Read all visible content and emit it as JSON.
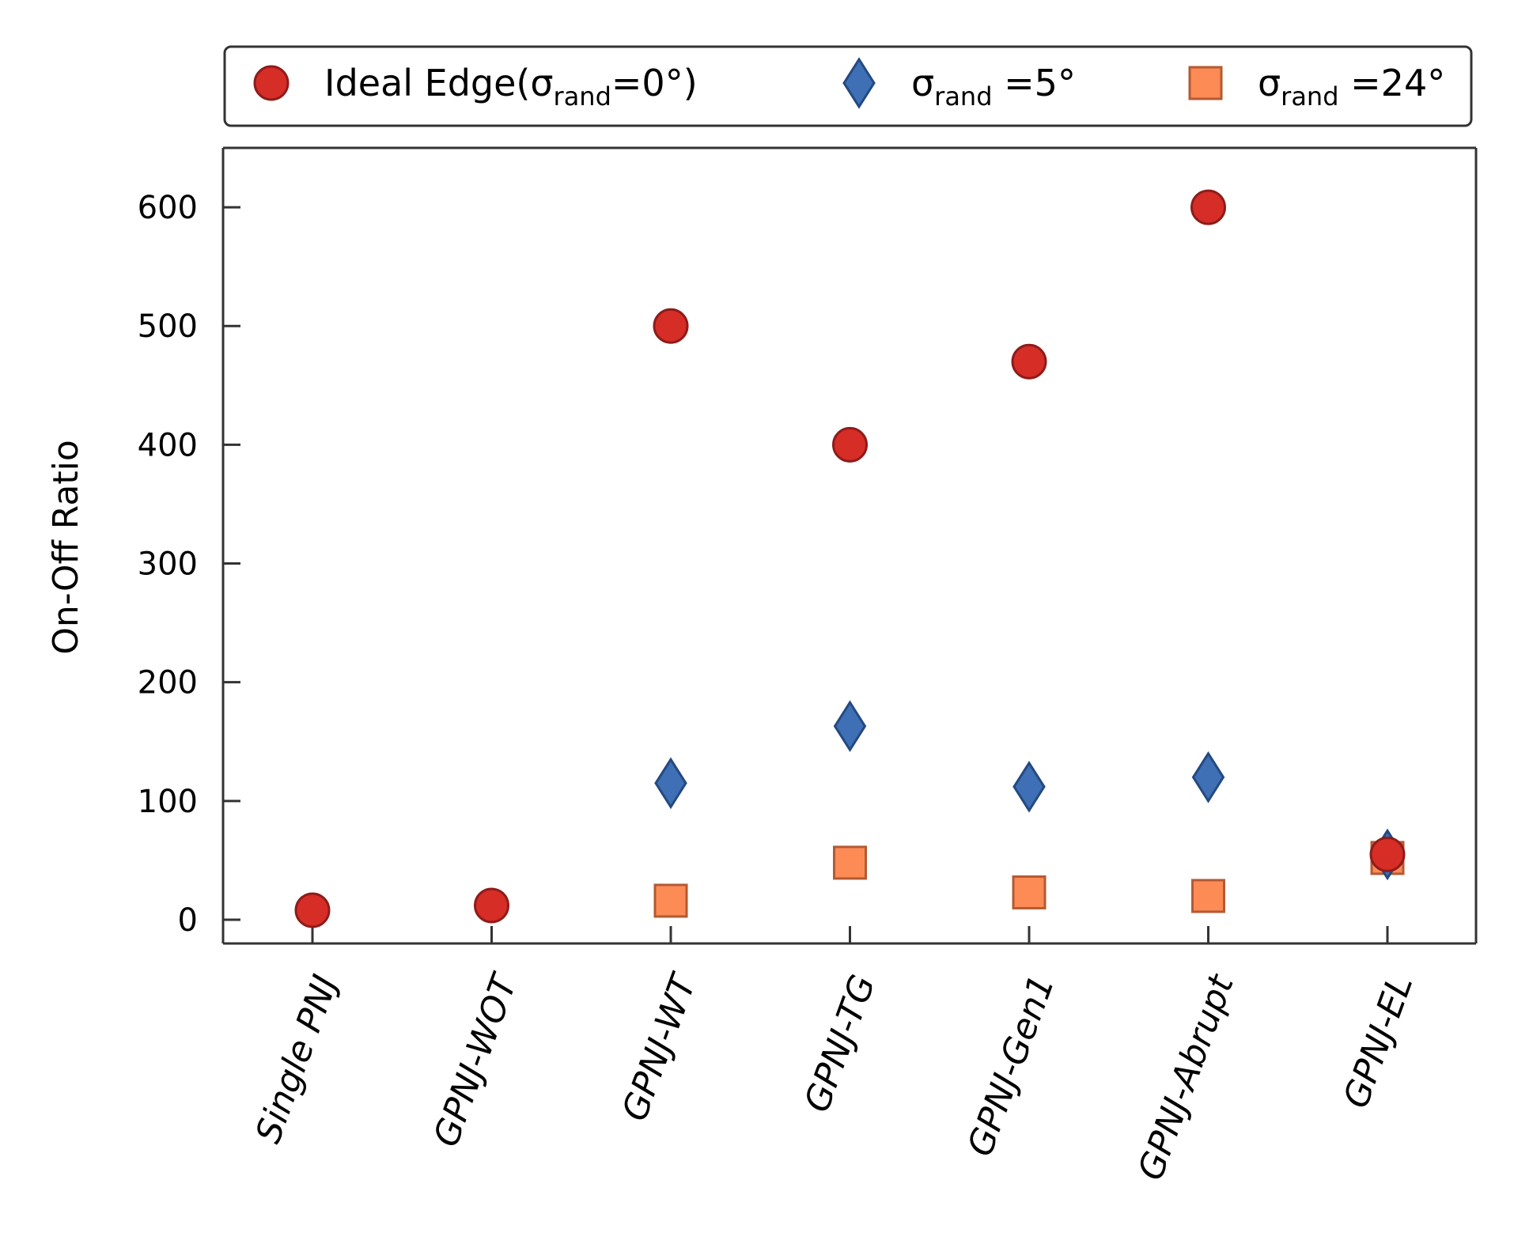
{
  "chart_data": {
    "type": "scatter",
    "ylabel": "On-Off Ratio",
    "xlabel": "",
    "ylim": [
      -20,
      650
    ],
    "yticks": [
      0,
      100,
      200,
      300,
      400,
      500,
      600
    ],
    "categories": [
      "Single PNJ",
      "GPNJ-WOT",
      "GPNJ-WT",
      "GPNJ-TG",
      "GPNJ-Gen1",
      "GPNJ-Abrupt",
      "GPNJ-EL"
    ],
    "legend_position": "top",
    "series": [
      {
        "legend": {
          "main": "Ideal Edge(σ",
          "sub": "rand",
          "suffix": "=0°)"
        },
        "marker": "circle",
        "fill": "#d62d27",
        "stroke": "#8e1c1a",
        "values": [
          8,
          12,
          null,
          null,
          null,
          null,
          null
        ],
        "values_full": [
          8,
          12,
          500,
          400,
          470,
          600,
          55
        ]
      },
      {
        "legend": {
          "main": "σ",
          "sub": "rand",
          "suffix": " =5°"
        },
        "marker": "diamond",
        "fill": "#3f6fb5",
        "stroke": "#234a80",
        "values_full": [
          null,
          null,
          115,
          163,
          112,
          120,
          55
        ]
      },
      {
        "legend": {
          "main": "σ",
          "sub": "rand",
          "suffix": " =24°"
        },
        "marker": "square",
        "fill": "#fc8b56",
        "stroke": "#b35a33",
        "values_full": [
          null,
          null,
          16,
          48,
          23,
          20,
          52
        ]
      }
    ]
  }
}
